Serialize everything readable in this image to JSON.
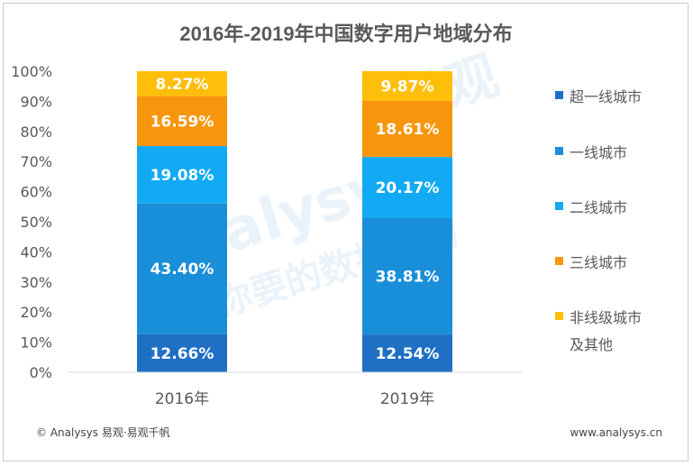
{
  "chart_data": {
    "type": "bar",
    "stacked": true,
    "title": "2016年-2019年中国数字用户地域分布",
    "categories": [
      "2016年",
      "2019年"
    ],
    "y_ticks": [
      "0%",
      "10%",
      "20%",
      "30%",
      "40%",
      "50%",
      "60%",
      "70%",
      "80%",
      "90%",
      "100%"
    ],
    "ylim": [
      0,
      100
    ],
    "legend_position": "right",
    "series": [
      {
        "name": "超一线城市",
        "color": "#1f6fc5",
        "values": [
          12.66,
          12.54
        ],
        "labels": [
          "12.66%",
          "12.54%"
        ]
      },
      {
        "name": "一线城市",
        "color": "#1a8fd9",
        "values": [
          43.4,
          38.81
        ],
        "labels": [
          "43.40%",
          "38.81%"
        ]
      },
      {
        "name": "二线城市",
        "color": "#12aaf5",
        "values": [
          19.08,
          20.17
        ],
        "labels": [
          "19.08%",
          "20.17%"
        ]
      },
      {
        "name": "三线城市",
        "color": "#f7960c",
        "values": [
          16.59,
          18.61
        ],
        "labels": [
          "16.59%",
          "18.61%"
        ]
      },
      {
        "name": "非线级城市及其他",
        "legend_lines": [
          "非线级城市",
          "及其他"
        ],
        "color": "#ffbe0a",
        "values": [
          8.27,
          9.87
        ],
        "labels": [
          "8.27%",
          "9.87%"
        ]
      }
    ]
  },
  "watermark": {
    "brand": "Analysys",
    "brand_cn": "易观",
    "slogan": "你要的数据能力"
  },
  "footer": {
    "left": "© Analysys 易观·易观千帆",
    "right": "www.analysys.cn"
  }
}
